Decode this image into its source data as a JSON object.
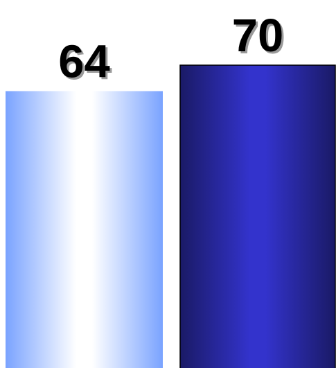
{
  "chart_data": {
    "type": "bar",
    "categories": [
      "",
      ""
    ],
    "values": [
      64,
      70
    ],
    "data_labels": [
      "64",
      "70"
    ],
    "title": "",
    "xlabel": "",
    "ylabel": "",
    "ylim": [
      0,
      70
    ],
    "grid": false,
    "legend": "none",
    "colors": {
      "bar_1_edge": "#7aa3ff",
      "bar_1_center": "#ffffff",
      "bar_2_edge": "#1a1a66",
      "bar_2_center": "#3333cc",
      "bar_2_outline": "#000000"
    }
  }
}
